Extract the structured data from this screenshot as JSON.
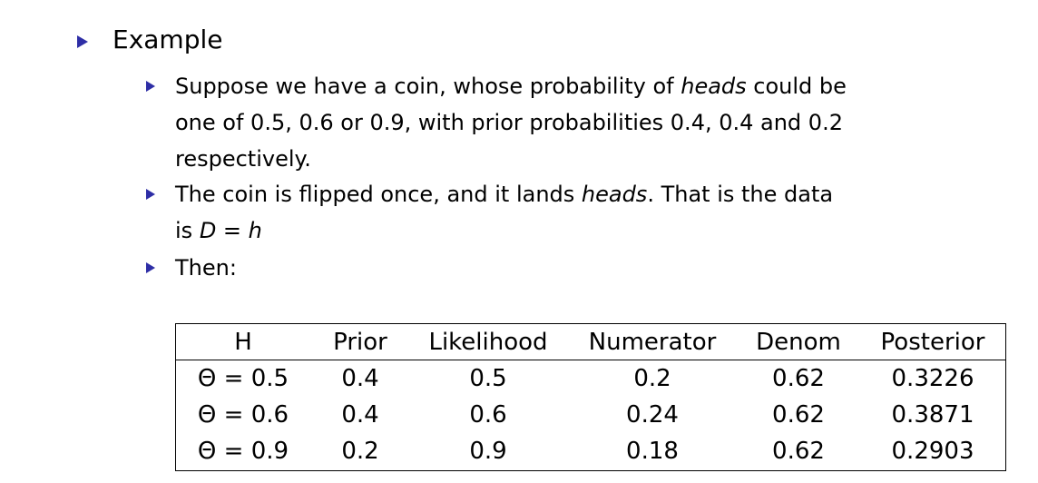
{
  "level1": {
    "label": "Example"
  },
  "bullets": [
    {
      "lines": [
        [
          "Suppose we have a coin, whose probability of ",
          "heads",
          " could be"
        ],
        [
          "one of 0.5, 0.6 or 0.9, with prior probabilities 0.4, 0.4 and 0.2"
        ],
        [
          "respectively."
        ]
      ]
    },
    {
      "lines": [
        [
          "The coin is flipped once, and it lands ",
          "heads",
          ". That is the data"
        ],
        [
          "is ",
          "D = h"
        ]
      ]
    },
    {
      "lines": [
        [
          "Then:"
        ]
      ]
    }
  ],
  "table": {
    "headers": [
      "H",
      "Prior",
      "Likelihood",
      "Numerator",
      "Denom",
      "Posterior"
    ],
    "rows": [
      [
        "Θ = 0.5",
        "0.4",
        "0.5",
        "0.2",
        "0.62",
        "0.3226"
      ],
      [
        "Θ = 0.6",
        "0.4",
        "0.6",
        "0.24",
        "0.62",
        "0.3871"
      ],
      [
        "Θ = 0.9",
        "0.2",
        "0.9",
        "0.18",
        "0.62",
        "0.2903"
      ]
    ]
  },
  "colors": {
    "bullet": "#2e2ea6",
    "text": "#000000"
  }
}
